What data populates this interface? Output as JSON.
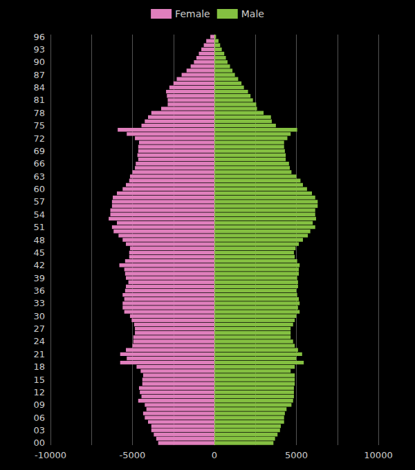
{
  "chart_data": {
    "type": "bar",
    "orientation": "horizontal",
    "stacked": true,
    "grid": true,
    "legend": "top",
    "categories": [
      "00",
      null,
      null,
      "03",
      null,
      null,
      "06",
      null,
      null,
      "09",
      null,
      null,
      "12",
      null,
      null,
      "15",
      null,
      null,
      "18",
      null,
      null,
      "21",
      null,
      null,
      "24",
      null,
      null,
      "27",
      null,
      null,
      "30",
      null,
      null,
      "33",
      null,
      null,
      "36",
      null,
      null,
      "39",
      null,
      null,
      "42",
      null,
      null,
      "45",
      null,
      null,
      "48",
      null,
      null,
      "51",
      null,
      null,
      "54",
      null,
      null,
      "57",
      null,
      null,
      "60",
      null,
      null,
      "63",
      null,
      null,
      "66",
      null,
      null,
      "69",
      null,
      null,
      "72",
      null,
      null,
      "75",
      null,
      null,
      "78",
      null,
      null,
      "81",
      null,
      null,
      "84",
      null,
      null,
      "87",
      null,
      null,
      "90",
      null,
      null,
      "93",
      null,
      null,
      "96"
    ],
    "series": [
      {
        "name": "Female",
        "color": "#e07fbd",
        "values": [
          -3430,
          -3550,
          -3700,
          -3850,
          -3850,
          -4050,
          -4250,
          -4350,
          -4150,
          -4250,
          -4650,
          -4450,
          -4550,
          -4600,
          -4400,
          -4400,
          -4350,
          -4500,
          -4750,
          -5750,
          -5350,
          -5750,
          -5400,
          -5000,
          -4950,
          -4950,
          -4850,
          -4850,
          -4900,
          -5050,
          -5150,
          -5500,
          -5600,
          -5600,
          -5500,
          -5600,
          -5450,
          -5400,
          -5250,
          -5400,
          -5450,
          -5500,
          -5800,
          -5450,
          -5200,
          -5200,
          -5150,
          -5400,
          -5600,
          -5850,
          -6150,
          -6250,
          -5950,
          -6450,
          -6350,
          -6350,
          -6250,
          -6250,
          -6200,
          -5950,
          -5600,
          -5400,
          -5200,
          -5150,
          -5000,
          -4850,
          -4800,
          -4650,
          -4700,
          -4650,
          -4650,
          -4600,
          -4850,
          -5350,
          -5900,
          -4450,
          -4250,
          -4050,
          -3850,
          -3250,
          -2850,
          -2850,
          -2900,
          -2950,
          -2750,
          -2500,
          -2300,
          -2000,
          -1700,
          -1450,
          -1250,
          -1100,
          -950,
          -800,
          -650,
          -500,
          -250
        ]
      },
      {
        "name": "Male",
        "color": "#84c041",
        "values": [
          3600,
          3700,
          3850,
          4000,
          4050,
          4250,
          4250,
          4300,
          4400,
          4700,
          4800,
          4850,
          4850,
          4850,
          4900,
          4900,
          4900,
          4650,
          4900,
          5450,
          5000,
          5350,
          5100,
          4900,
          4800,
          4650,
          4650,
          4650,
          4800,
          4900,
          5000,
          5200,
          5100,
          5200,
          5150,
          5050,
          5000,
          5100,
          5100,
          5050,
          5150,
          5150,
          5200,
          5050,
          4900,
          4850,
          4950,
          5150,
          5400,
          5700,
          5850,
          6150,
          6000,
          6200,
          6150,
          6150,
          6300,
          6300,
          6150,
          5950,
          5650,
          5400,
          5250,
          5000,
          4700,
          4600,
          4550,
          4350,
          4350,
          4300,
          4250,
          4250,
          4450,
          4650,
          5050,
          3750,
          3500,
          3450,
          3000,
          2600,
          2550,
          2350,
          2200,
          2050,
          1800,
          1650,
          1450,
          1250,
          1100,
          950,
          800,
          700,
          600,
          450,
          350,
          250,
          100
        ]
      }
    ],
    "xlim": [
      -10000,
      10000
    ],
    "xticks": [
      -10000,
      -5000,
      0,
      5000,
      10000
    ]
  }
}
